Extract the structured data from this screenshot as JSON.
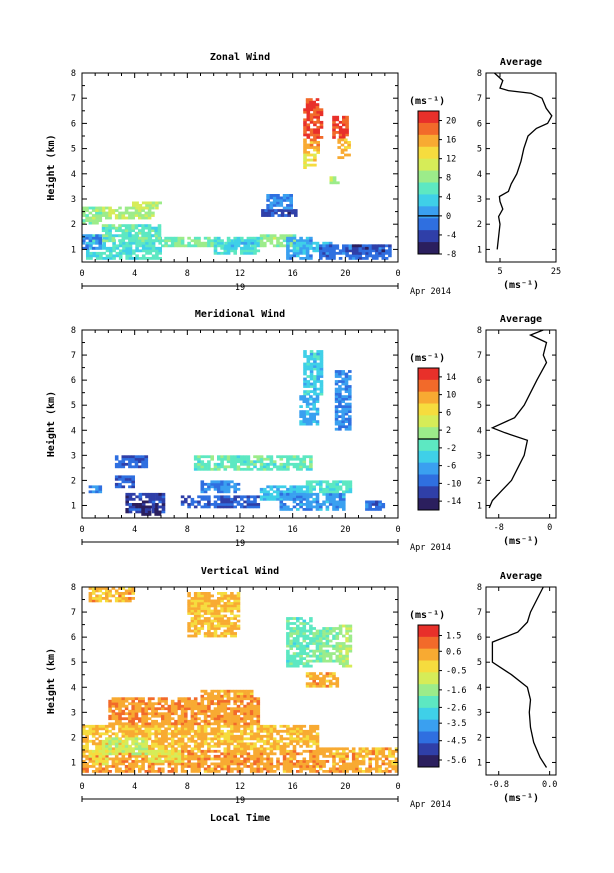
{
  "figure": {
    "x_axis_label": "Local Time",
    "day_label": "19",
    "month_label": "Apr 2014",
    "colorbar_unit": "(ms⁻¹)",
    "height_label": "Height (km)",
    "average_title": "Average",
    "average_unit": "(ms⁻¹)"
  },
  "chart_data": [
    {
      "type": "heatmap",
      "title": "Zonal Wind",
      "xlabel": "",
      "ylabel": "Height (km)",
      "xlim": [
        0,
        24
      ],
      "ylim": [
        0.5,
        8
      ],
      "x_ticks": [
        "0",
        "4",
        "8",
        "12",
        "16",
        "20",
        "0"
      ],
      "y_ticks": [
        "1",
        "2",
        "3",
        "4",
        "5",
        "6",
        "7",
        "8"
      ],
      "colorbar": {
        "unit": "(ms⁻¹)",
        "vmin": -8,
        "vmax": 22,
        "tick_labels": [
          "20",
          "16",
          "12",
          "8",
          "4",
          "0",
          "-4",
          "-8"
        ],
        "tick_values": [
          20,
          16,
          12,
          8,
          4,
          0,
          -4,
          -8
        ],
        "zero_line": 0
      },
      "regions": [
        {
          "x0": 0.3,
          "x1": 6.0,
          "y0": 0.6,
          "y1": 1.6,
          "v": 5
        },
        {
          "x0": 1.5,
          "x1": 6.0,
          "y0": 1.3,
          "y1": 2.0,
          "v": 6
        },
        {
          "x0": 0.0,
          "x1": 1.5,
          "y0": 1.0,
          "y1": 1.6,
          "v": 0
        },
        {
          "x0": 6.0,
          "x1": 10.0,
          "y0": 1.1,
          "y1": 1.5,
          "v": 7
        },
        {
          "x0": 10.0,
          "x1": 13.5,
          "y0": 0.8,
          "y1": 1.5,
          "v": 5
        },
        {
          "x0": 10.8,
          "x1": 13.0,
          "y0": 1.0,
          "y1": 1.4,
          "v": 3
        },
        {
          "x0": 1.0,
          "x1": 5.5,
          "y0": 2.2,
          "y1": 2.7,
          "v": 9
        },
        {
          "x0": 3.8,
          "x1": 6.0,
          "y0": 2.6,
          "y1": 2.9,
          "v": 10
        },
        {
          "x0": 0.0,
          "x1": 1.3,
          "y0": 2.0,
          "y1": 2.7,
          "v": 8
        },
        {
          "x0": 13.5,
          "x1": 16.2,
          "y0": 1.1,
          "y1": 1.6,
          "v": 8
        },
        {
          "x0": 15.5,
          "x1": 17.5,
          "y0": 0.6,
          "y1": 1.5,
          "v": 1
        },
        {
          "x0": 16.0,
          "x1": 19.0,
          "y0": 0.9,
          "y1": 1.3,
          "v": 3
        },
        {
          "x0": 18.0,
          "x1": 23.5,
          "y0": 0.6,
          "y1": 1.2,
          "v": -2
        },
        {
          "x0": 20.5,
          "x1": 22.8,
          "y0": 0.8,
          "y1": 1.2,
          "v": -4
        },
        {
          "x0": 13.6,
          "x1": 16.2,
          "y0": 2.3,
          "y1": 2.6,
          "v": -4
        },
        {
          "x0": 14.0,
          "x1": 16.0,
          "y0": 2.6,
          "y1": 3.2,
          "v": 0
        },
        {
          "x0": 16.8,
          "x1": 18.3,
          "y0": 5.4,
          "y1": 6.6,
          "v": 20
        },
        {
          "x0": 17.0,
          "x1": 18.0,
          "y0": 6.6,
          "y1": 7.0,
          "v": 20
        },
        {
          "x0": 16.8,
          "x1": 18.0,
          "y0": 4.8,
          "y1": 5.4,
          "v": 16
        },
        {
          "x0": 16.8,
          "x1": 17.6,
          "y0": 4.2,
          "y1": 4.8,
          "v": 13
        },
        {
          "x0": 19.0,
          "x1": 20.2,
          "y0": 5.4,
          "y1": 6.3,
          "v": 20
        },
        {
          "x0": 19.4,
          "x1": 20.2,
          "y0": 4.6,
          "y1": 5.4,
          "v": 15
        },
        {
          "x0": 18.8,
          "x1": 19.5,
          "y0": 3.6,
          "y1": 3.9,
          "v": 9
        }
      ]
    },
    {
      "type": "heatmap",
      "title": "Meridional Wind",
      "xlabel": "",
      "ylabel": "Height (km)",
      "xlim": [
        0,
        24
      ],
      "ylim": [
        0.5,
        8
      ],
      "x_ticks": [
        "0",
        "4",
        "8",
        "12",
        "16",
        "20",
        "0"
      ],
      "y_ticks": [
        "1",
        "2",
        "3",
        "4",
        "5",
        "6",
        "7",
        "8"
      ],
      "colorbar": {
        "unit": "(ms⁻¹)",
        "vmin": -16,
        "vmax": 16,
        "tick_labels": [
          "14",
          "10",
          "6",
          "2",
          "-2",
          "-6",
          "-10",
          "-14"
        ],
        "tick_values": [
          14,
          10,
          6,
          2,
          -2,
          -6,
          -10,
          -14
        ],
        "zero_line": 0
      },
      "regions": [
        {
          "x0": 2.5,
          "x1": 4.0,
          "y0": 1.7,
          "y1": 2.2,
          "v": -10
        },
        {
          "x0": 3.3,
          "x1": 6.2,
          "y0": 0.7,
          "y1": 1.5,
          "v": -12
        },
        {
          "x0": 4.5,
          "x1": 6.0,
          "y0": 0.6,
          "y1": 1.0,
          "v": -15
        },
        {
          "x0": 2.5,
          "x1": 5.0,
          "y0": 2.5,
          "y1": 3.0,
          "v": -10
        },
        {
          "x0": 0.5,
          "x1": 1.3,
          "y0": 1.5,
          "y1": 1.8,
          "v": -8
        },
        {
          "x0": 7.5,
          "x1": 13.5,
          "y0": 0.9,
          "y1": 1.4,
          "v": -10
        },
        {
          "x0": 9.0,
          "x1": 12.0,
          "y0": 1.5,
          "y1": 2.0,
          "v": -8
        },
        {
          "x0": 8.5,
          "x1": 17.5,
          "y0": 2.4,
          "y1": 3.0,
          "v": -1
        },
        {
          "x0": 13.5,
          "x1": 17.0,
          "y0": 1.2,
          "y1": 1.8,
          "v": -5
        },
        {
          "x0": 15.0,
          "x1": 19.8,
          "y0": 0.8,
          "y1": 1.5,
          "v": -7
        },
        {
          "x0": 17.0,
          "x1": 20.5,
          "y0": 1.5,
          "y1": 2.0,
          "v": -2
        },
        {
          "x0": 16.8,
          "x1": 18.2,
          "y0": 5.4,
          "y1": 7.2,
          "v": -4
        },
        {
          "x0": 16.5,
          "x1": 18.0,
          "y0": 4.2,
          "y1": 5.4,
          "v": -6
        },
        {
          "x0": 19.2,
          "x1": 20.4,
          "y0": 4.0,
          "y1": 6.4,
          "v": -8
        },
        {
          "x0": 21.5,
          "x1": 23.0,
          "y0": 0.8,
          "y1": 1.2,
          "v": -9
        }
      ]
    },
    {
      "type": "heatmap",
      "title": "Vertical Wind",
      "xlabel": "Local Time",
      "ylabel": "Height (km)",
      "xlim": [
        0,
        24
      ],
      "ylim": [
        0.5,
        8
      ],
      "x_ticks": [
        "0",
        "4",
        "8",
        "12",
        "16",
        "20",
        "0"
      ],
      "y_ticks": [
        "1",
        "2",
        "3",
        "4",
        "5",
        "6",
        "7",
        "8"
      ],
      "colorbar": {
        "unit": "(ms⁻¹)",
        "vmin": -6,
        "vmax": 2.1,
        "tick_labels": [
          "1.5",
          "0.6",
          "-0.5",
          "-1.6",
          "-2.6",
          "-3.5",
          "-4.5",
          "-5.6"
        ],
        "tick_values": [
          1.5,
          0.6,
          -0.5,
          -1.6,
          -2.6,
          -3.5,
          -4.5,
          -5.6
        ],
        "zero_line": null
      },
      "regions": [
        {
          "x0": 0.0,
          "x1": 18.0,
          "y0": 0.6,
          "y1": 1.5,
          "v": 0.5
        },
        {
          "x0": 0.0,
          "x1": 18.0,
          "y0": 1.5,
          "y1": 2.5,
          "v": 0.2
        },
        {
          "x0": 2.0,
          "x1": 13.5,
          "y0": 2.5,
          "y1": 3.6,
          "v": 0.6
        },
        {
          "x0": 9.0,
          "x1": 13.0,
          "y0": 3.5,
          "y1": 3.9,
          "v": 0.4
        },
        {
          "x0": 18.0,
          "x1": 24.0,
          "y0": 0.6,
          "y1": 1.6,
          "v": 0.4
        },
        {
          "x0": 17.0,
          "x1": 19.5,
          "y0": 4.0,
          "y1": 4.6,
          "v": 0.4
        },
        {
          "x0": 1.5,
          "x1": 5.0,
          "y0": 1.3,
          "y1": 2.0,
          "v": -1.0
        },
        {
          "x0": 0.5,
          "x1": 2.0,
          "y0": 0.9,
          "y1": 1.5,
          "v": -0.5
        },
        {
          "x0": 5.0,
          "x1": 7.5,
          "y0": 1.0,
          "y1": 1.5,
          "v": -0.8
        },
        {
          "x0": 15.5,
          "x1": 17.5,
          "y0": 4.8,
          "y1": 6.8,
          "v": -2.2
        },
        {
          "x0": 17.5,
          "x1": 19.5,
          "y0": 5.0,
          "y1": 6.4,
          "v": -1.8
        },
        {
          "x0": 19.5,
          "x1": 20.5,
          "y0": 4.8,
          "y1": 6.5,
          "v": -1.5
        },
        {
          "x0": 0.5,
          "x1": 4.0,
          "y0": 7.4,
          "y1": 8.0,
          "v": 0.3
        },
        {
          "x0": 8.0,
          "x1": 12.0,
          "y0": 6.0,
          "y1": 7.8,
          "v": 0.2
        }
      ]
    }
  ],
  "average_data": [
    {
      "title": "Average",
      "xlim": [
        0,
        25
      ],
      "x_ticks": [
        "5",
        "25"
      ],
      "x_tick_values": [
        5,
        25
      ],
      "y_ticks": [
        "1",
        "2",
        "3",
        "4",
        "5",
        "6",
        "7",
        "8"
      ],
      "profile": [
        [
          4.0,
          1.0
        ],
        [
          4.5,
          1.5
        ],
        [
          5.0,
          2.0
        ],
        [
          4.5,
          2.3
        ],
        [
          6.0,
          2.6
        ],
        [
          5.0,
          2.9
        ],
        [
          4.8,
          3.1
        ],
        [
          8.0,
          3.3
        ],
        [
          9.0,
          3.6
        ],
        [
          11.0,
          4.0
        ],
        [
          12.5,
          4.5
        ],
        [
          13.5,
          5.0
        ],
        [
          15.0,
          5.5
        ],
        [
          18.0,
          5.8
        ],
        [
          22.0,
          6.0
        ],
        [
          23.5,
          6.3
        ],
        [
          21.5,
          6.6
        ],
        [
          20.0,
          7.0
        ],
        [
          16.0,
          7.2
        ],
        [
          8.0,
          7.3
        ],
        [
          5.0,
          7.4
        ],
        [
          6.0,
          7.7
        ],
        [
          3.0,
          8.0
        ]
      ]
    },
    {
      "title": "Average",
      "xlim": [
        -10,
        1
      ],
      "x_ticks": [
        "-8",
        "0"
      ],
      "x_tick_values": [
        -8,
        0
      ],
      "y_ticks": [
        "1",
        "2",
        "3",
        "4",
        "5",
        "6",
        "7",
        "8"
      ],
      "profile": [
        [
          -9.5,
          0.9
        ],
        [
          -9.0,
          1.2
        ],
        [
          -7.5,
          1.6
        ],
        [
          -6.0,
          2.0
        ],
        [
          -5.0,
          2.5
        ],
        [
          -4.0,
          3.0
        ],
        [
          -3.5,
          3.6
        ],
        [
          -7.0,
          3.9
        ],
        [
          -9.0,
          4.1
        ],
        [
          -5.5,
          4.5
        ],
        [
          -4.0,
          5.0
        ],
        [
          -3.0,
          5.5
        ],
        [
          -2.0,
          6.0
        ],
        [
          -0.5,
          6.7
        ],
        [
          -1.0,
          7.0
        ],
        [
          -0.5,
          7.5
        ],
        [
          -3.0,
          7.8
        ],
        [
          -1.0,
          8.0
        ]
      ]
    },
    {
      "title": "Average",
      "xlim": [
        -1.0,
        0.1
      ],
      "x_ticks": [
        "-0.8",
        "0.0"
      ],
      "x_tick_values": [
        -0.8,
        0.0
      ],
      "y_ticks": [
        "1",
        "2",
        "3",
        "4",
        "5",
        "6",
        "7",
        "8"
      ],
      "profile": [
        [
          -0.05,
          0.8
        ],
        [
          -0.15,
          1.2
        ],
        [
          -0.25,
          1.8
        ],
        [
          -0.3,
          2.4
        ],
        [
          -0.32,
          3.0
        ],
        [
          -0.3,
          3.5
        ],
        [
          -0.35,
          4.0
        ],
        [
          -0.6,
          4.5
        ],
        [
          -0.9,
          5.0
        ],
        [
          -0.9,
          5.8
        ],
        [
          -0.5,
          6.2
        ],
        [
          -0.35,
          6.6
        ],
        [
          -0.3,
          7.0
        ],
        [
          -0.2,
          7.5
        ],
        [
          -0.1,
          8.0
        ]
      ]
    }
  ]
}
